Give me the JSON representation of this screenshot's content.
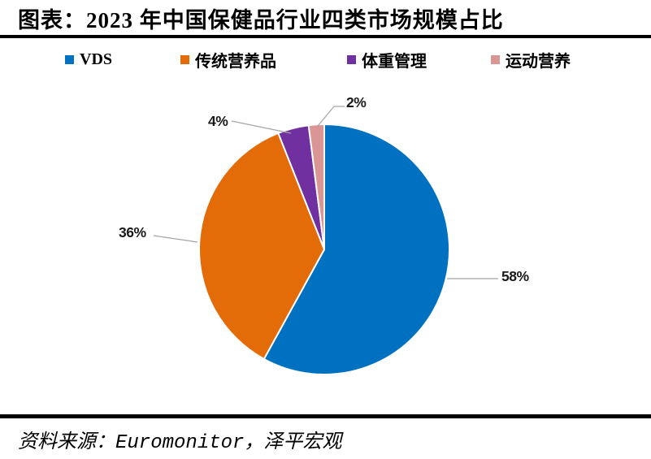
{
  "header": {
    "title": "图表：2023 年中国保健品行业四类市场规模占比"
  },
  "legend": {
    "items": [
      {
        "label": "VDS",
        "color": "#0070C0"
      },
      {
        "label": "传统营养品",
        "color": "#E36C09"
      },
      {
        "label": "体重管理",
        "color": "#7030A0"
      },
      {
        "label": "运动营养",
        "color": "#D99694"
      }
    ]
  },
  "chart_data": {
    "type": "pie",
    "title": "2023 年中国保健品行业四类市场规模占比",
    "categories": [
      "VDS",
      "传统营养品",
      "体重管理",
      "运动营养"
    ],
    "values": [
      58,
      36,
      4,
      2
    ],
    "value_labels": [
      "58%",
      "36%",
      "4%",
      "2%"
    ],
    "unit": "percent",
    "colors": [
      "#0070C0",
      "#E36C09",
      "#7030A0",
      "#D99694"
    ],
    "start_angle_deg": 0,
    "direction": "clockwise",
    "legend_position": "top",
    "slice_border_color": "#FFFFFF",
    "leader_line_color": "#A6A6A6"
  },
  "footer": {
    "source_prefix": "资料来源：",
    "source_en": "Euromonitor",
    "source_suffix": "，泽平宏观"
  }
}
